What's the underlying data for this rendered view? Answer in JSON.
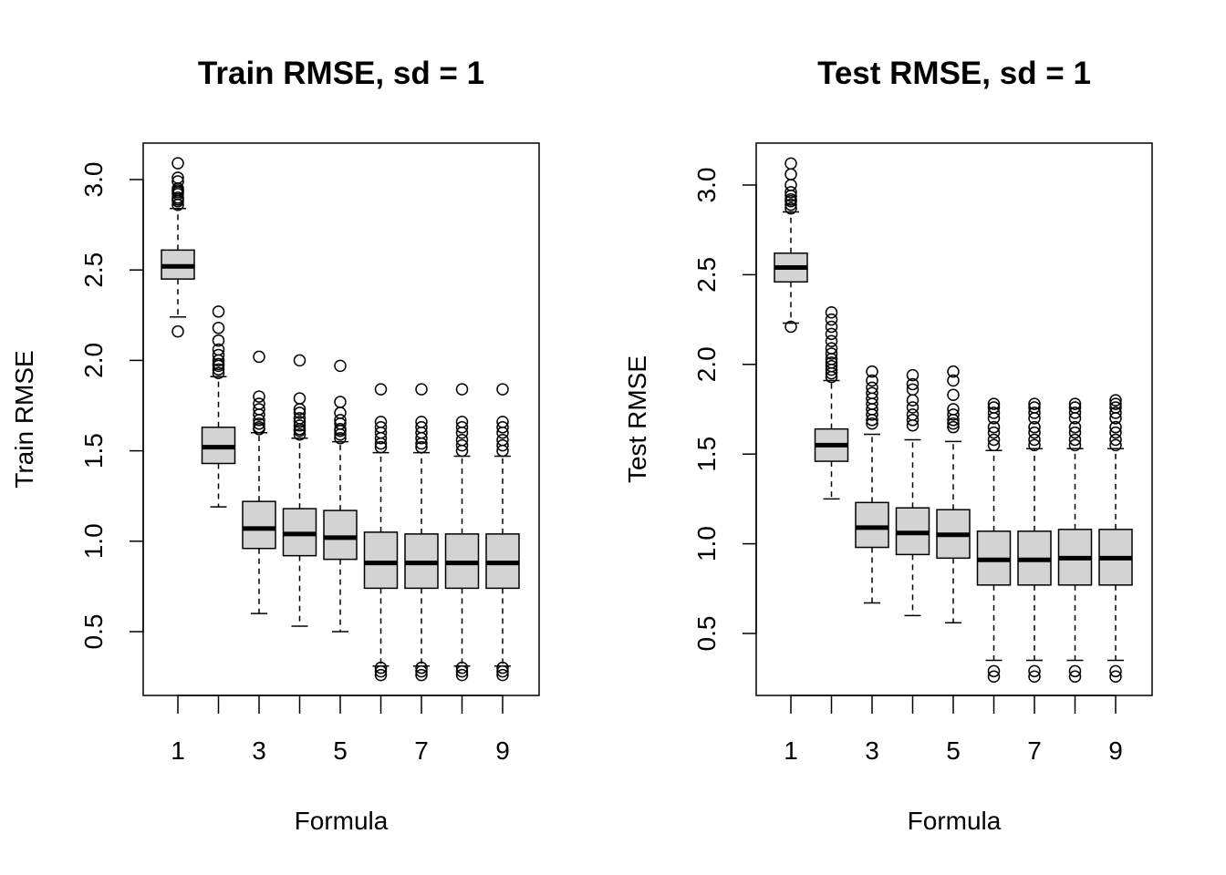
{
  "chart_data": [
    {
      "type": "boxplot",
      "title": "Train RMSE, sd =  1",
      "xlabel": "Formula",
      "ylabel": "Train RMSE",
      "categories": [
        "1",
        "2",
        "3",
        "4",
        "5",
        "6",
        "7",
        "8",
        "9"
      ],
      "x_tick_labels": [
        "1",
        "3",
        "5",
        "7",
        "9"
      ],
      "y_ticks": [
        "0.5",
        "1.0",
        "1.5",
        "2.0",
        "2.5",
        "3.0"
      ],
      "ylim": [
        0.25,
        3.12
      ],
      "box_fill": "#d3d3d3",
      "boxes": [
        {
          "q1": 2.45,
          "median": 2.52,
          "q3": 2.61,
          "whisker_low": 2.24,
          "whisker_high": 2.84,
          "outliers": [
            2.16,
            2.86,
            2.88,
            2.89,
            2.9,
            2.92,
            2.93,
            2.94,
            2.95,
            2.99,
            3.01,
            3.09
          ]
        },
        {
          "q1": 1.43,
          "median": 1.52,
          "q3": 1.63,
          "whisker_low": 1.19,
          "whisker_high": 1.91,
          "outliers": [
            1.93,
            1.95,
            1.97,
            1.98,
            2.0,
            2.03,
            2.06,
            2.11,
            2.18,
            2.27
          ]
        },
        {
          "q1": 0.96,
          "median": 1.07,
          "q3": 1.22,
          "whisker_low": 0.6,
          "whisker_high": 1.6,
          "outliers": [
            1.62,
            1.63,
            1.65,
            1.67,
            1.7,
            1.73,
            1.76,
            1.8,
            2.02
          ]
        },
        {
          "q1": 0.92,
          "median": 1.04,
          "q3": 1.18,
          "whisker_low": 0.53,
          "whisker_high": 1.57,
          "outliers": [
            1.59,
            1.61,
            1.62,
            1.64,
            1.66,
            1.68,
            1.71,
            1.73,
            1.79,
            2.0
          ]
        },
        {
          "q1": 0.9,
          "median": 1.02,
          "q3": 1.17,
          "whisker_low": 0.5,
          "whisker_high": 1.55,
          "outliers": [
            1.57,
            1.59,
            1.61,
            1.62,
            1.65,
            1.67,
            1.71,
            1.77,
            1.97
          ]
        },
        {
          "q1": 0.74,
          "median": 0.88,
          "q3": 1.05,
          "whisker_low": 0.31,
          "whisker_high": 1.49,
          "outliers": [
            0.26,
            0.28,
            0.3,
            1.52,
            1.54,
            1.57,
            1.6,
            1.63,
            1.66,
            1.84
          ]
        },
        {
          "q1": 0.74,
          "median": 0.88,
          "q3": 1.04,
          "whisker_low": 0.31,
          "whisker_high": 1.49,
          "outliers": [
            0.26,
            0.28,
            0.3,
            1.52,
            1.54,
            1.57,
            1.6,
            1.63,
            1.66,
            1.84
          ]
        },
        {
          "q1": 0.74,
          "median": 0.88,
          "q3": 1.04,
          "whisker_low": 0.31,
          "whisker_high": 1.47,
          "outliers": [
            0.26,
            0.28,
            0.3,
            1.5,
            1.53,
            1.56,
            1.6,
            1.63,
            1.66,
            1.84
          ]
        },
        {
          "q1": 0.74,
          "median": 0.88,
          "q3": 1.04,
          "whisker_low": 0.31,
          "whisker_high": 1.47,
          "outliers": [
            0.26,
            0.28,
            0.3,
            1.5,
            1.53,
            1.56,
            1.6,
            1.63,
            1.66,
            1.84
          ]
        }
      ]
    },
    {
      "type": "boxplot",
      "title": "Test RMSE, sd =  1",
      "xlabel": "Formula",
      "ylabel": "Test RMSE",
      "categories": [
        "1",
        "2",
        "3",
        "4",
        "5",
        "6",
        "7",
        "8",
        "9"
      ],
      "x_tick_labels": [
        "1",
        "3",
        "5",
        "7",
        "9"
      ],
      "y_ticks": [
        "0.5",
        "1.0",
        "1.5",
        "2.0",
        "2.5",
        "3.0"
      ],
      "ylim": [
        0.25,
        3.12
      ],
      "box_fill": "#d3d3d3",
      "boxes": [
        {
          "q1": 2.46,
          "median": 2.54,
          "q3": 2.62,
          "whisker_low": 2.23,
          "whisker_high": 2.85,
          "outliers": [
            2.21,
            2.87,
            2.89,
            2.91,
            2.92,
            2.94,
            2.96,
            3.0,
            3.06,
            3.12
          ]
        },
        {
          "q1": 1.46,
          "median": 1.55,
          "q3": 1.64,
          "whisker_low": 1.25,
          "whisker_high": 1.91,
          "outliers": [
            1.93,
            1.95,
            1.97,
            1.99,
            2.01,
            2.03,
            2.06,
            2.09,
            2.13,
            2.17,
            2.21,
            2.25,
            2.29
          ]
        },
        {
          "q1": 0.98,
          "median": 1.09,
          "q3": 1.23,
          "whisker_low": 0.67,
          "whisker_high": 1.61,
          "outliers": [
            1.67,
            1.69,
            1.72,
            1.75,
            1.78,
            1.81,
            1.84,
            1.87,
            1.91,
            1.96
          ]
        },
        {
          "q1": 0.94,
          "median": 1.06,
          "q3": 1.2,
          "whisker_low": 0.6,
          "whisker_high": 1.58,
          "outliers": [
            1.66,
            1.69,
            1.72,
            1.76,
            1.8,
            1.86,
            1.89,
            1.94
          ]
        },
        {
          "q1": 0.92,
          "median": 1.05,
          "q3": 1.19,
          "whisker_low": 0.56,
          "whisker_high": 1.57,
          "outliers": [
            1.65,
            1.67,
            1.69,
            1.72,
            1.75,
            1.83,
            1.91,
            1.96
          ]
        },
        {
          "q1": 0.77,
          "median": 0.91,
          "q3": 1.07,
          "whisker_low": 0.35,
          "whisker_high": 1.52,
          "outliers": [
            0.26,
            0.29,
            1.55,
            1.58,
            1.62,
            1.65,
            1.7,
            1.73,
            1.76,
            1.78
          ]
        },
        {
          "q1": 0.77,
          "median": 0.91,
          "q3": 1.07,
          "whisker_low": 0.35,
          "whisker_high": 1.53,
          "outliers": [
            0.26,
            0.29,
            1.55,
            1.58,
            1.62,
            1.65,
            1.7,
            1.73,
            1.76,
            1.78
          ]
        },
        {
          "q1": 0.77,
          "median": 0.92,
          "q3": 1.08,
          "whisker_low": 0.35,
          "whisker_high": 1.53,
          "outliers": [
            0.26,
            0.29,
            1.55,
            1.58,
            1.62,
            1.65,
            1.7,
            1.73,
            1.76,
            1.78
          ]
        },
        {
          "q1": 0.77,
          "median": 0.92,
          "q3": 1.08,
          "whisker_low": 0.35,
          "whisker_high": 1.53,
          "outliers": [
            0.26,
            0.29,
            1.55,
            1.58,
            1.62,
            1.65,
            1.7,
            1.73,
            1.76,
            1.78,
            1.8
          ]
        }
      ]
    }
  ]
}
